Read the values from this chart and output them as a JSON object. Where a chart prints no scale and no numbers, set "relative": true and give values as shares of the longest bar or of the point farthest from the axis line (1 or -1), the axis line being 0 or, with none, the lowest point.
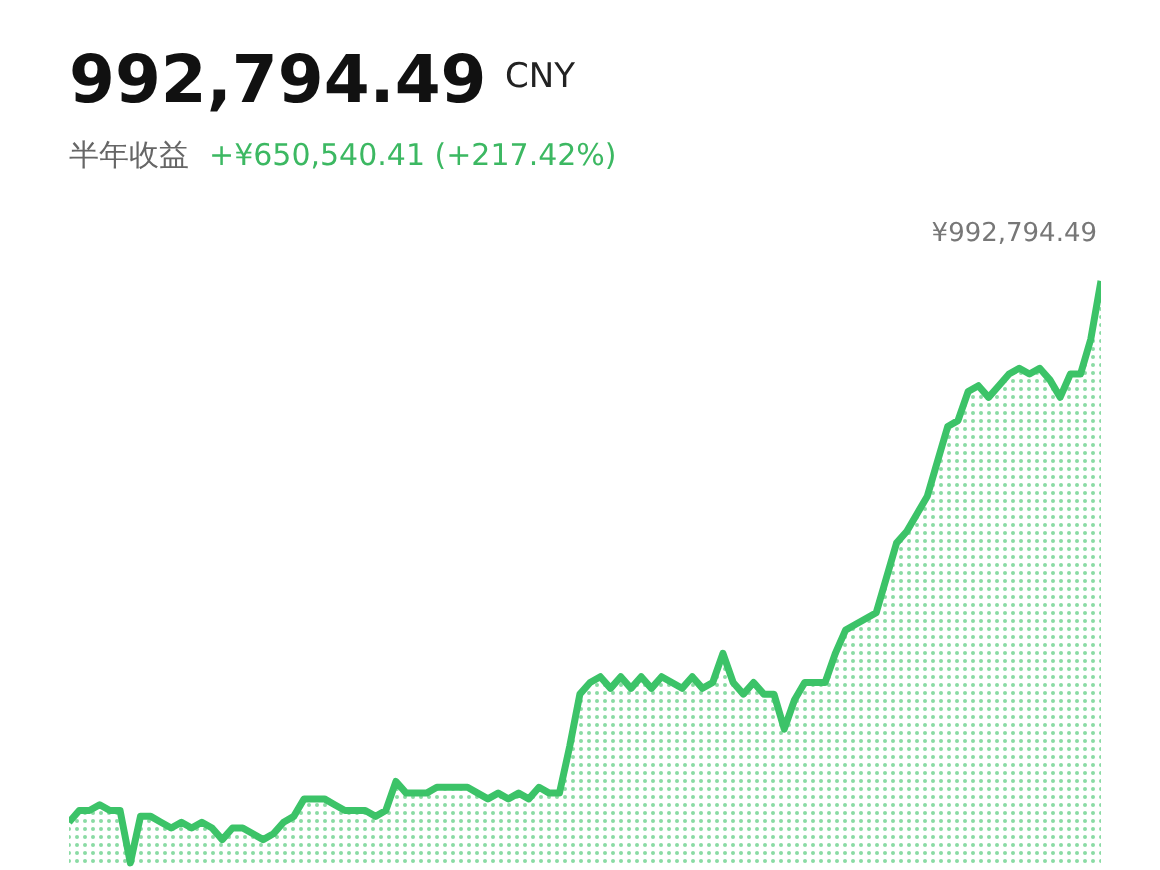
{
  "chart_data": {
    "type": "area",
    "title": "992,794.49 CNY",
    "subtitle": "半年收益 +¥650,540.41 (+217.42%)",
    "relative": true,
    "grid": false,
    "categories": [
      null,
      null,
      null,
      null,
      null,
      null,
      null,
      null,
      null,
      null,
      null,
      null,
      null,
      null,
      null,
      null,
      null,
      null,
      null,
      null,
      null,
      null,
      null,
      null,
      null,
      null,
      null,
      null,
      null,
      null,
      null,
      null,
      null,
      null,
      null,
      null,
      null,
      null,
      null,
      null,
      null,
      null,
      null,
      null,
      null,
      null,
      null,
      null,
      null,
      null,
      null,
      null,
      null,
      null,
      null,
      null,
      null,
      null,
      null,
      null,
      null,
      null,
      null,
      null,
      null,
      null,
      null,
      null,
      null,
      null,
      null,
      null,
      null,
      null,
      null,
      null,
      null,
      null,
      null,
      null,
      null,
      null,
      null,
      null,
      null,
      null,
      null,
      null,
      null,
      null,
      null,
      null,
      null,
      null,
      null,
      null,
      null,
      null,
      null,
      null,
      null,
      null
    ],
    "series": [
      {
        "color": "#3cc368",
        "values": [
          0.07,
          0.09,
          0.09,
          0.1,
          0.09,
          0.09,
          0.0,
          0.08,
          0.08,
          0.07,
          0.06,
          0.07,
          0.06,
          0.07,
          0.06,
          0.04,
          0.06,
          0.06,
          0.05,
          0.04,
          0.05,
          0.07,
          0.08,
          0.11,
          0.11,
          0.11,
          0.1,
          0.09,
          0.09,
          0.09,
          0.08,
          0.09,
          0.14,
          0.12,
          0.12,
          0.12,
          0.13,
          0.13,
          0.13,
          0.13,
          0.12,
          0.11,
          0.12,
          0.11,
          0.12,
          0.11,
          0.13,
          0.12,
          0.12,
          0.2,
          0.29,
          0.31,
          0.32,
          0.3,
          0.32,
          0.3,
          0.32,
          0.3,
          0.32,
          0.31,
          0.3,
          0.32,
          0.3,
          0.31,
          0.36,
          0.31,
          0.29,
          0.31,
          0.29,
          0.29,
          0.23,
          0.28,
          0.31,
          0.31,
          0.31,
          0.36,
          0.4,
          0.41,
          0.42,
          0.43,
          0.49,
          0.55,
          0.57,
          0.6,
          0.63,
          0.69,
          0.75,
          0.76,
          0.81,
          0.82,
          0.8,
          0.82,
          0.84,
          0.85,
          0.84,
          0.85,
          0.83,
          0.8,
          0.84,
          0.84,
          0.9,
          1.0
        ]
      }
    ],
    "annotations": [
      "¥992,794.49"
    ]
  }
}
